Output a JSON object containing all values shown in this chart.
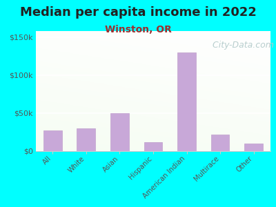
{
  "title": "Median per capita income in 2022",
  "subtitle": "Winston, OR",
  "categories": [
    "All",
    "White",
    "Asian",
    "Hispanic",
    "American Indian",
    "Multirace",
    "Other"
  ],
  "values": [
    27000,
    30000,
    50000,
    12000,
    130000,
    22000,
    10000
  ],
  "bar_color": "#c8a8d8",
  "bar_edge_color": "#c0a0cc",
  "title_fontsize": 13,
  "title_color": "#222222",
  "subtitle_fontsize": 10,
  "subtitle_color": "#9b3030",
  "background_outer": "#00ffff",
  "yticks": [
    0,
    50000,
    100000,
    150000
  ],
  "ylim": [
    0,
    158000
  ],
  "watermark": "  City-Data.com",
  "watermark_color": "#b8cece",
  "watermark_fontsize": 9,
  "tick_label_color": "#555555",
  "bottom_line_color": "#cccccc"
}
